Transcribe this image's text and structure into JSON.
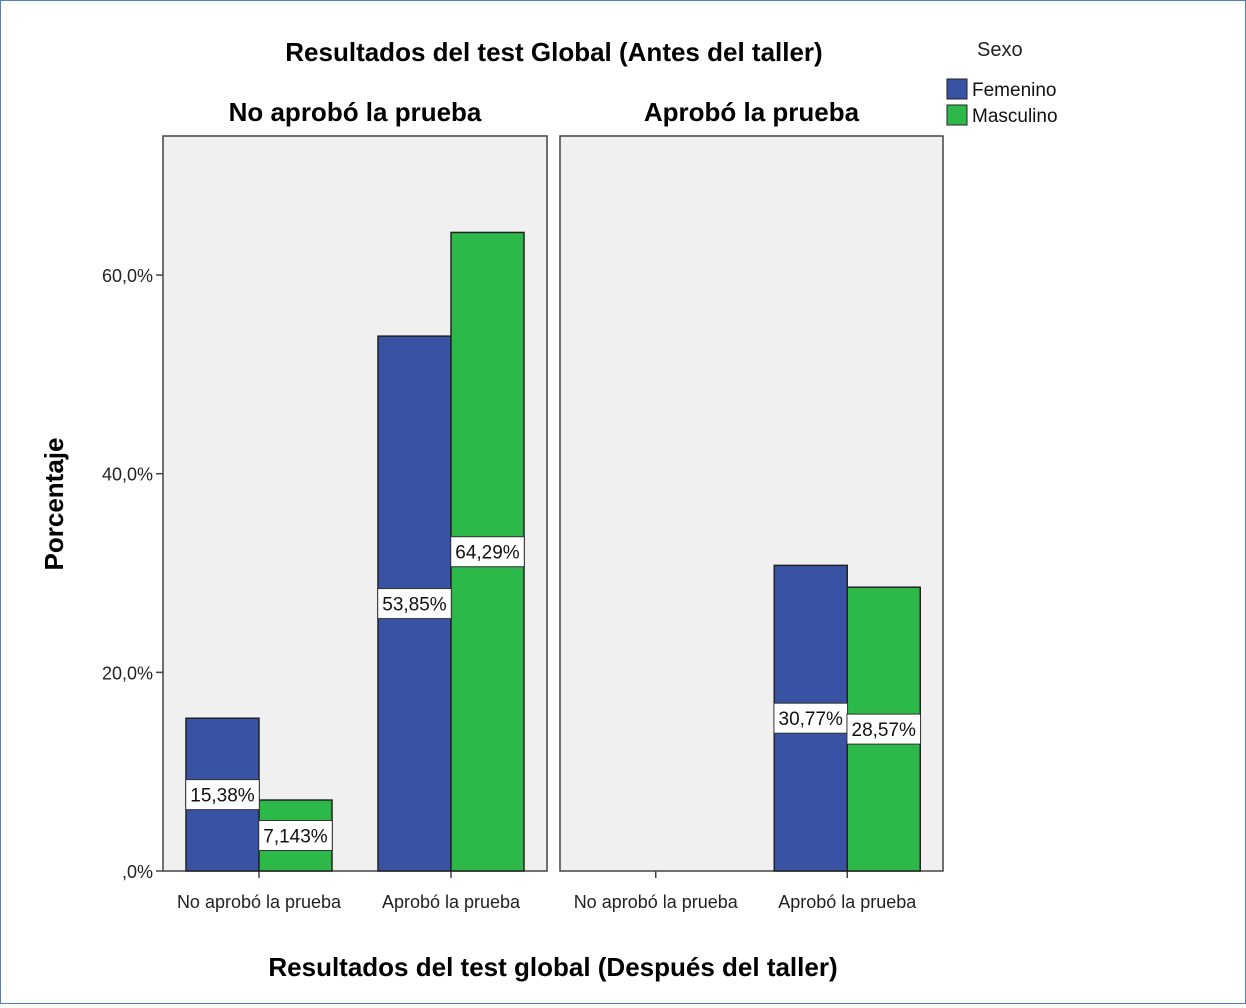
{
  "chart_data": {
    "type": "bar",
    "title": "Resultados del test Global (Antes del taller)",
    "xlabel": "Resultados del test global (Después del taller)",
    "ylabel": "Porcentaje",
    "ylim": [
      0,
      74
    ],
    "yticks": [
      {
        "value": 0,
        "label": ",0%"
      },
      {
        "value": 20,
        "label": "20,0%"
      },
      {
        "value": 40,
        "label": "40,0%"
      },
      {
        "value": 60,
        "label": "60,0%"
      }
    ],
    "categories": [
      "No aprobó la prueba",
      "Aprobó la prueba"
    ],
    "legend": {
      "title": "Sexo",
      "position": "top-right"
    },
    "grid": false,
    "panels": [
      {
        "title": "No aprobó la prueba",
        "series": [
          {
            "name": "Femenino",
            "color": "#3953a4",
            "values": [
              15.38,
              53.85
            ],
            "labels": [
              "15,38%",
              "53,85%"
            ]
          },
          {
            "name": "Masculino",
            "color": "#2db84a",
            "values": [
              7.143,
              64.29
            ],
            "labels": [
              "7,143%",
              "64,29%"
            ]
          }
        ]
      },
      {
        "title": "Aprobó la prueba",
        "series": [
          {
            "name": "Femenino",
            "color": "#3953a4",
            "values": [
              null,
              30.77
            ],
            "labels": [
              null,
              "30,77%"
            ]
          },
          {
            "name": "Masculino",
            "color": "#2db84a",
            "values": [
              null,
              28.57
            ],
            "labels": [
              null,
              "28,57%"
            ]
          }
        ]
      }
    ]
  }
}
